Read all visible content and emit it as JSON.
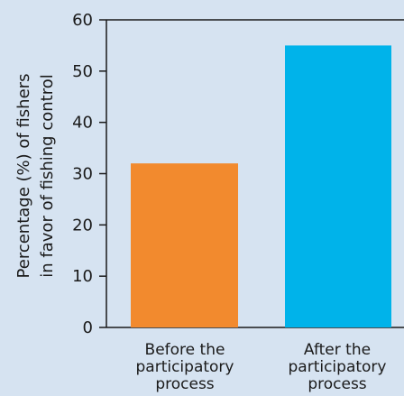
{
  "chart_data": {
    "type": "bar",
    "categories": [
      [
        "Before the",
        "participatory",
        "process"
      ],
      [
        "After the",
        "participatory",
        "process"
      ]
    ],
    "values": [
      32,
      55
    ],
    "colors": [
      "#f28a2e",
      "#00b3ea"
    ],
    "ylabel_lines": [
      "Percentage (%) of fishers",
      "in favor of fishing control"
    ],
    "ylim": [
      0,
      60
    ],
    "yticks": [
      0,
      10,
      20,
      30,
      40,
      50,
      60
    ],
    "ytick_labels": [
      "0",
      "10",
      "20",
      "30",
      "40",
      "50",
      "60"
    ],
    "grid": false
  },
  "colors": {
    "background": "#d6e3f1",
    "axis": "#1a1a1a"
  }
}
